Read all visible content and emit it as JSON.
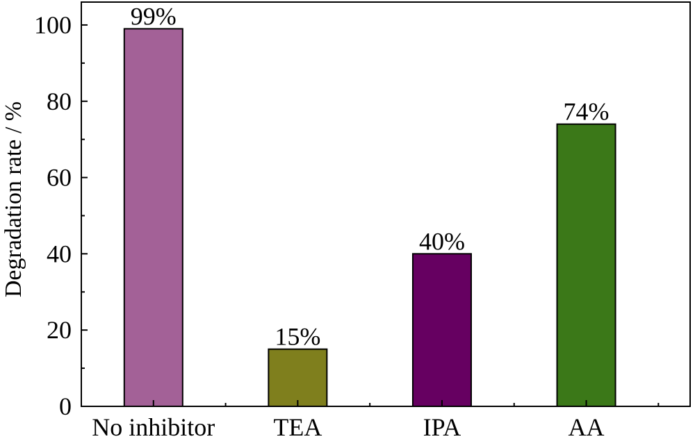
{
  "chart_data": {
    "type": "bar",
    "title": "",
    "xlabel": "",
    "ylabel": "Degradation rate / %",
    "ylim": [
      0,
      106
    ],
    "yticks": [
      0,
      20,
      40,
      60,
      80,
      100
    ],
    "yminor_step": 10,
    "grid": false,
    "categories": [
      "No inhibitor",
      "TEA",
      "IPA",
      "AA"
    ],
    "values": [
      99,
      15,
      40,
      74
    ],
    "data_labels": [
      "99%",
      "15%",
      "40%",
      "74%"
    ],
    "colors": [
      "#a36197",
      "#7f7f1d",
      "#660061",
      "#3b7818"
    ]
  }
}
